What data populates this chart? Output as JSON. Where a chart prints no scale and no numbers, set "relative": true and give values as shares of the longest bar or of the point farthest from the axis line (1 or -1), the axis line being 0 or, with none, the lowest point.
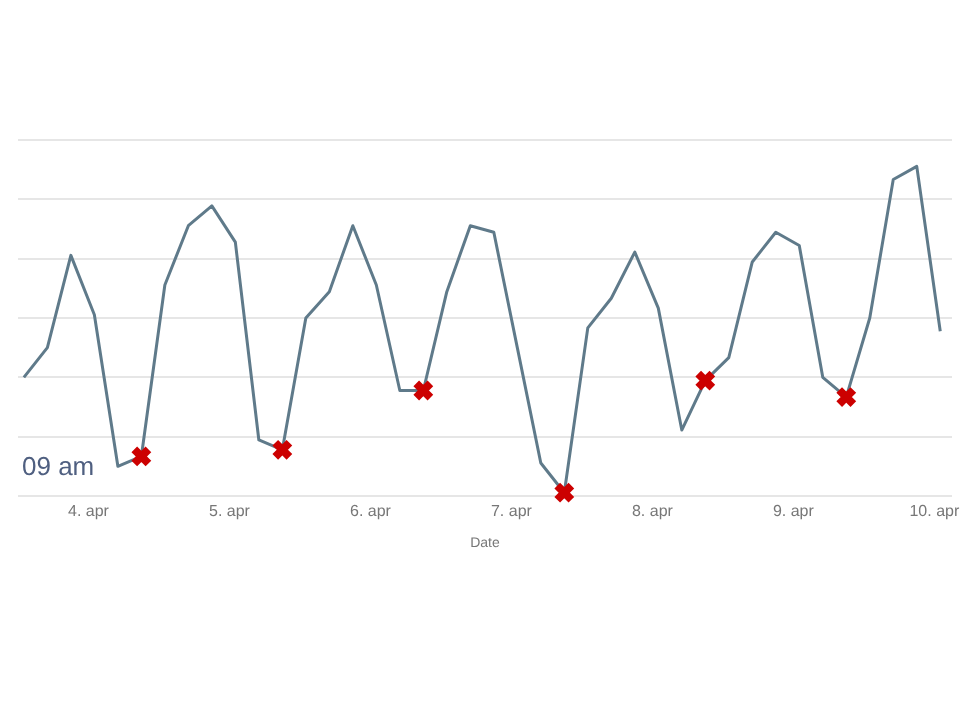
{
  "chart_data": {
    "type": "line",
    "relative": true,
    "xlabel": "Date",
    "grid": "y",
    "legend": false,
    "xlim": [
      "--04-03T12:00",
      "--04-10T03:00"
    ],
    "xticks": [
      {
        "value": "--04-04",
        "label": "4. apr"
      },
      {
        "value": "--04-05",
        "label": "5. apr"
      },
      {
        "value": "--04-06",
        "label": "6. apr"
      },
      {
        "value": "--04-07",
        "label": "7. apr"
      },
      {
        "value": "--04-08",
        "label": "8. apr"
      },
      {
        "value": "--04-09",
        "label": "9. apr"
      },
      {
        "value": "--04-10",
        "label": "10. apr"
      }
    ],
    "annotations": [
      "09 am"
    ],
    "series": [
      {
        "color": "#5f7a8a",
        "marker": "none",
        "x": [
          "--04-03T13:00",
          "--04-03T17:00",
          "--04-03T21:00",
          "--04-04T01:00",
          "--04-04T05:00",
          "--04-04T09:00",
          "--04-04T13:00",
          "--04-04T17:00",
          "--04-04T21:00",
          "--04-05T01:00",
          "--04-05T05:00",
          "--04-05T09:00",
          "--04-05T13:00",
          "--04-05T17:00",
          "--04-05T21:00",
          "--04-06T01:00",
          "--04-06T05:00",
          "--04-06T09:00",
          "--04-06T13:00",
          "--04-06T17:00",
          "--04-06T21:00",
          "--04-07T01:00",
          "--04-07T05:00",
          "--04-07T09:00",
          "--04-07T13:00",
          "--04-07T17:00",
          "--04-07T21:00",
          "--04-08T01:00",
          "--04-08T05:00",
          "--04-08T09:00",
          "--04-08T13:00",
          "--04-08T17:00",
          "--04-08T21:00",
          "--04-09T01:00",
          "--04-09T05:00",
          "--04-09T09:00",
          "--04-09T13:00",
          "--04-09T17:00",
          "--04-09T21:00",
          "--04-10T01:00"
        ],
        "values": [
          0.36,
          0.45,
          0.73,
          0.55,
          0.09,
          0.12,
          0.64,
          0.82,
          0.88,
          0.77,
          0.17,
          0.14,
          0.54,
          0.62,
          0.82,
          0.64,
          0.32,
          0.32,
          0.62,
          0.82,
          0.8,
          0.45,
          0.1,
          0.01,
          0.51,
          0.6,
          0.74,
          0.57,
          0.2,
          0.35,
          0.42,
          0.71,
          0.8,
          0.76,
          0.36,
          0.3,
          0.54,
          0.96,
          1,
          0.5
        ]
      },
      {
        "type": "scatter",
        "color": "#cc0000",
        "marker": "cross",
        "x": [
          "--04-04T09:00",
          "--04-05T09:00",
          "--04-06T09:00",
          "--04-07T09:00",
          "--04-08T09:00",
          "--04-09T09:00"
        ],
        "values": [
          0.12,
          0.14,
          0.32,
          0.01,
          0.35,
          0.3
        ]
      }
    ]
  }
}
